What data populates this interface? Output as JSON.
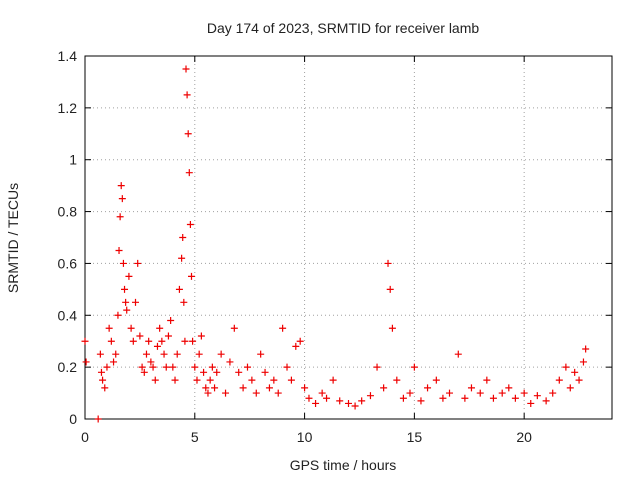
{
  "chart_data": {
    "type": "scatter",
    "title": "Day 174 of 2023, SRMTID for receiver lamb",
    "xlabel": "GPS time / hours",
    "ylabel": "SRMTID / TECUs",
    "xlim": [
      0,
      24
    ],
    "ylim": [
      0,
      1.4
    ],
    "grid": true,
    "marker": "+",
    "color": "#ee0000",
    "xticks": [
      0,
      5,
      10,
      15,
      20
    ],
    "xtick_labels": [
      "0",
      "5",
      "10",
      "15",
      "20"
    ],
    "yticks": [
      0,
      0.2,
      0.4,
      0.6,
      0.8,
      1.0,
      1.2,
      1.4
    ],
    "ytick_labels": [
      "0",
      "0.2",
      "0.4",
      "0.6",
      "0.8",
      "1",
      "1.2",
      "1.4"
    ],
    "series": [
      {
        "name": "SRMTID",
        "x": [
          0.0,
          0.05,
          0.6,
          0.7,
          0.75,
          0.8,
          0.9,
          1.0,
          1.1,
          1.2,
          1.3,
          1.4,
          1.5,
          1.55,
          1.6,
          1.65,
          1.7,
          1.75,
          1.8,
          1.85,
          1.9,
          2.0,
          2.1,
          2.2,
          2.3,
          2.4,
          2.5,
          2.6,
          2.7,
          2.8,
          2.9,
          3.0,
          3.1,
          3.2,
          3.3,
          3.4,
          3.5,
          3.6,
          3.7,
          3.8,
          3.9,
          4.0,
          4.1,
          4.2,
          4.3,
          4.4,
          4.45,
          4.5,
          4.55,
          4.6,
          4.65,
          4.7,
          4.75,
          4.8,
          4.85,
          4.9,
          5.0,
          5.1,
          5.2,
          5.3,
          5.4,
          5.5,
          5.6,
          5.7,
          5.8,
          5.9,
          6.0,
          6.2,
          6.4,
          6.6,
          6.8,
          7.0,
          7.2,
          7.4,
          7.6,
          7.8,
          8.0,
          8.2,
          8.4,
          8.6,
          8.8,
          9.0,
          9.2,
          9.4,
          9.6,
          9.8,
          10.0,
          10.2,
          10.5,
          10.8,
          11.0,
          11.3,
          11.6,
          12.0,
          12.3,
          12.6,
          13.0,
          13.3,
          13.6,
          13.8,
          13.9,
          14.0,
          14.2,
          14.5,
          14.8,
          15.0,
          15.3,
          15.6,
          16.0,
          16.3,
          16.6,
          17.0,
          17.3,
          17.6,
          18.0,
          18.3,
          18.6,
          19.0,
          19.3,
          19.6,
          20.0,
          20.3,
          20.6,
          21.0,
          21.3,
          21.6,
          21.9,
          22.1,
          22.3,
          22.5,
          22.7,
          22.8
        ],
        "y": [
          0.3,
          0.22,
          0.0,
          0.25,
          0.18,
          0.15,
          0.12,
          0.2,
          0.35,
          0.3,
          0.22,
          0.25,
          0.4,
          0.65,
          0.78,
          0.9,
          0.85,
          0.6,
          0.5,
          0.45,
          0.42,
          0.55,
          0.35,
          0.3,
          0.45,
          0.6,
          0.32,
          0.2,
          0.18,
          0.25,
          0.3,
          0.22,
          0.2,
          0.15,
          0.28,
          0.35,
          0.3,
          0.25,
          0.2,
          0.32,
          0.38,
          0.2,
          0.15,
          0.25,
          0.5,
          0.62,
          0.7,
          0.45,
          0.3,
          1.35,
          1.25,
          1.1,
          0.95,
          0.75,
          0.55,
          0.3,
          0.2,
          0.15,
          0.25,
          0.32,
          0.18,
          0.12,
          0.1,
          0.15,
          0.2,
          0.12,
          0.18,
          0.25,
          0.1,
          0.22,
          0.35,
          0.18,
          0.12,
          0.2,
          0.15,
          0.1,
          0.25,
          0.18,
          0.12,
          0.15,
          0.1,
          0.35,
          0.2,
          0.15,
          0.28,
          0.3,
          0.12,
          0.08,
          0.06,
          0.1,
          0.08,
          0.15,
          0.07,
          0.06,
          0.05,
          0.07,
          0.09,
          0.2,
          0.12,
          0.6,
          0.5,
          0.35,
          0.15,
          0.08,
          0.1,
          0.2,
          0.07,
          0.12,
          0.15,
          0.08,
          0.1,
          0.25,
          0.08,
          0.12,
          0.1,
          0.15,
          0.08,
          0.1,
          0.12,
          0.08,
          0.1,
          0.06,
          0.09,
          0.07,
          0.1,
          0.15,
          0.2,
          0.12,
          0.18,
          0.15,
          0.22,
          0.27
        ]
      }
    ]
  }
}
